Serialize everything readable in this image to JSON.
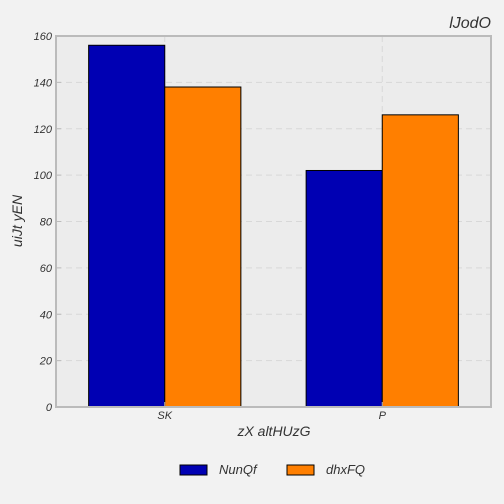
{
  "chart_data": {
    "type": "bar",
    "title": "lJodO",
    "xlabel": "zX  altHUzG",
    "ylabel": "uiJt yEN",
    "categories": [
      "SK",
      "P"
    ],
    "series": [
      {
        "name": "NunQf",
        "values": [
          156,
          102
        ],
        "color": "#0000b3"
      },
      {
        "name": "dhxFQ",
        "values": [
          138,
          126
        ],
        "color": "#ff7f00"
      }
    ],
    "ylim": [
      0,
      160
    ],
    "yticks": [
      0,
      20,
      40,
      60,
      80,
      100,
      120,
      140,
      160
    ],
    "grid": true,
    "legend": "bottom-center"
  }
}
